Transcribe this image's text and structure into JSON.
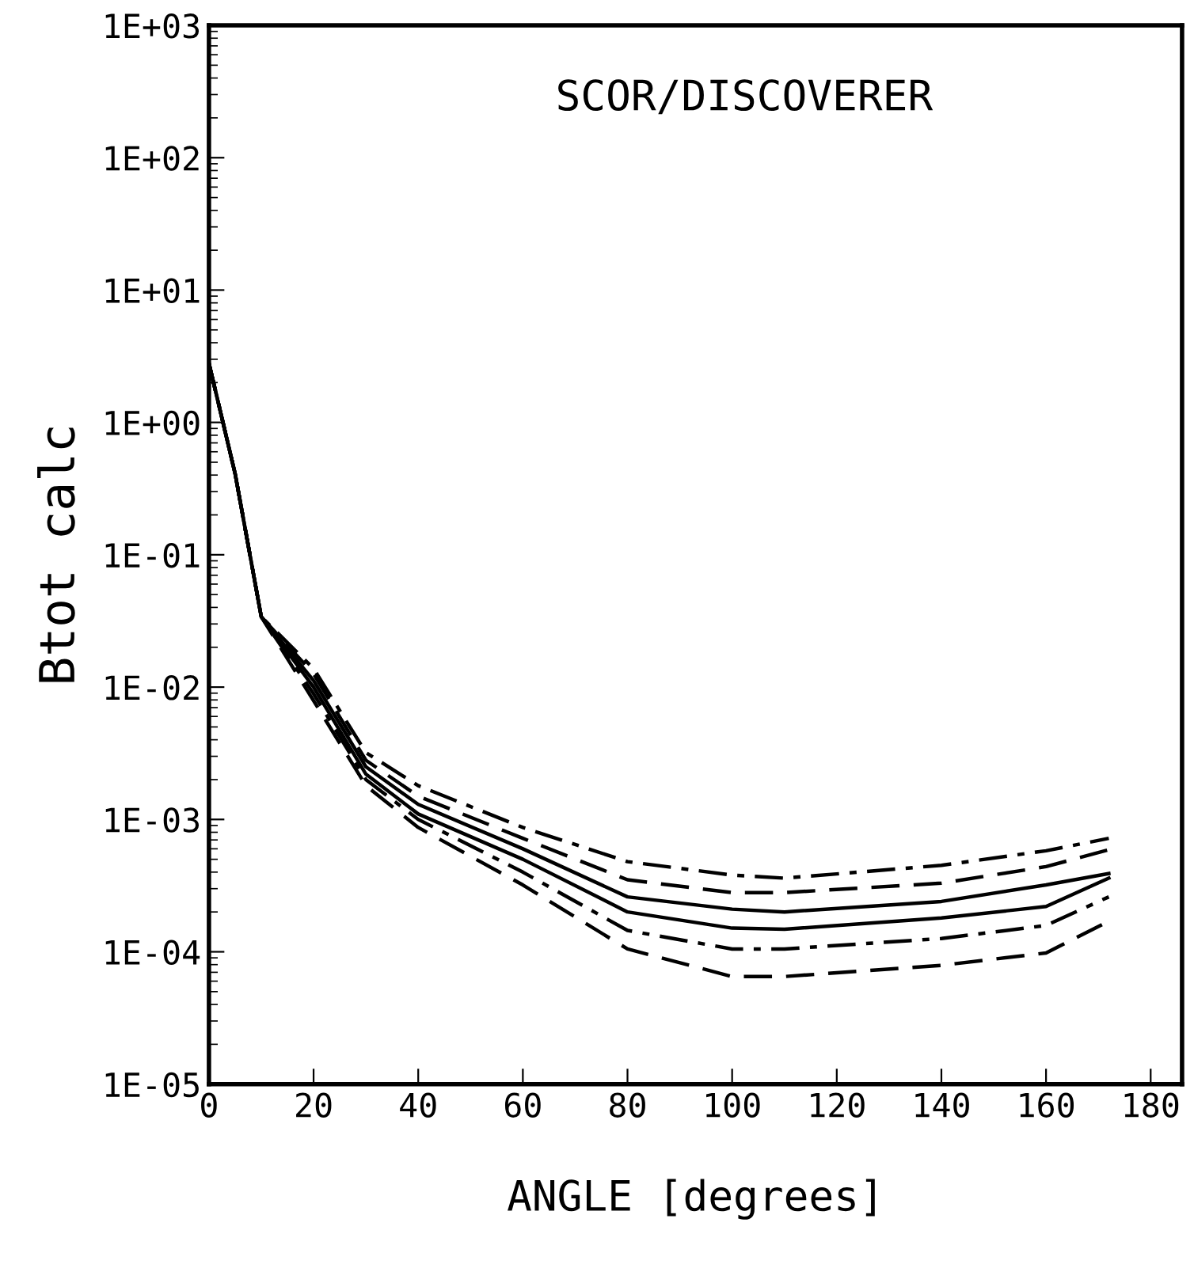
{
  "chart_data": {
    "type": "line",
    "title": "SCOR/DISCOVERER",
    "xlabel": "ANGLE [degrees]",
    "ylabel": "Btot calc",
    "log": "y",
    "xlim": [
      0,
      186
    ],
    "xticks": [
      0,
      20,
      40,
      60,
      80,
      100,
      120,
      140,
      160,
      180
    ],
    "ylim": [
      1e-05,
      1000
    ],
    "yticks": [
      {
        "value": 1000,
        "label": "1E+03"
      },
      {
        "value": 100,
        "label": "1E+02"
      },
      {
        "value": 10,
        "label": "1E+01"
      },
      {
        "value": 1,
        "label": "1E+00"
      },
      {
        "value": 0.1,
        "label": "1E-01"
      },
      {
        "value": 0.01,
        "label": "1E-02"
      },
      {
        "value": 0.001,
        "label": "1E-03"
      },
      {
        "value": 0.0001,
        "label": "1E-04"
      },
      {
        "value": 1e-05,
        "label": "1E-05"
      }
    ],
    "grid": false,
    "legend": false,
    "x": [
      0,
      5,
      10,
      20,
      30,
      40,
      60,
      80,
      100,
      110,
      140,
      160,
      172
    ],
    "series": [
      {
        "color": "#000000",
        "line_style": "dashdot",
        "values": [
          2.8,
          0.41,
          0.034,
          0.0138,
          0.0032,
          0.0018,
          0.00087,
          0.00048,
          0.00038,
          0.00036,
          0.00045,
          0.00058,
          0.00072
        ]
      },
      {
        "color": "#000000",
        "line_style": "dashed",
        "values": [
          2.8,
          0.41,
          0.034,
          0.0126,
          0.0028,
          0.0015,
          0.00072,
          0.00035,
          0.00028,
          0.00028,
          0.00033,
          0.00044,
          0.00059
        ]
      },
      {
        "color": "#000000",
        "line_style": "solid",
        "values": [
          2.8,
          0.41,
          0.034,
          0.0112,
          0.0025,
          0.0013,
          0.0006,
          0.00026,
          0.00021,
          0.0002,
          0.00024,
          0.00032,
          0.00039
        ]
      },
      {
        "color": "#000000",
        "line_style": "solid",
        "values": [
          2.8,
          0.41,
          0.034,
          0.01,
          0.0022,
          0.0011,
          0.0005,
          0.0002,
          0.000151,
          0.000148,
          0.00018,
          0.00022,
          0.00036
        ]
      },
      {
        "color": "#000000",
        "line_style": "dashdot",
        "values": [
          2.8,
          0.41,
          0.034,
          0.0089,
          0.002,
          0.001,
          0.0004,
          0.000145,
          0.000105,
          0.000105,
          0.000126,
          0.000158,
          0.00026
        ]
      },
      {
        "color": "#000000",
        "line_style": "dashed",
        "values": [
          2.8,
          0.41,
          0.034,
          0.0079,
          0.0018,
          0.00087,
          0.00032,
          0.000105,
          6.5e-05,
          6.5e-05,
          7.9e-05,
          9.8e-05,
          0.00017
        ]
      }
    ]
  }
}
